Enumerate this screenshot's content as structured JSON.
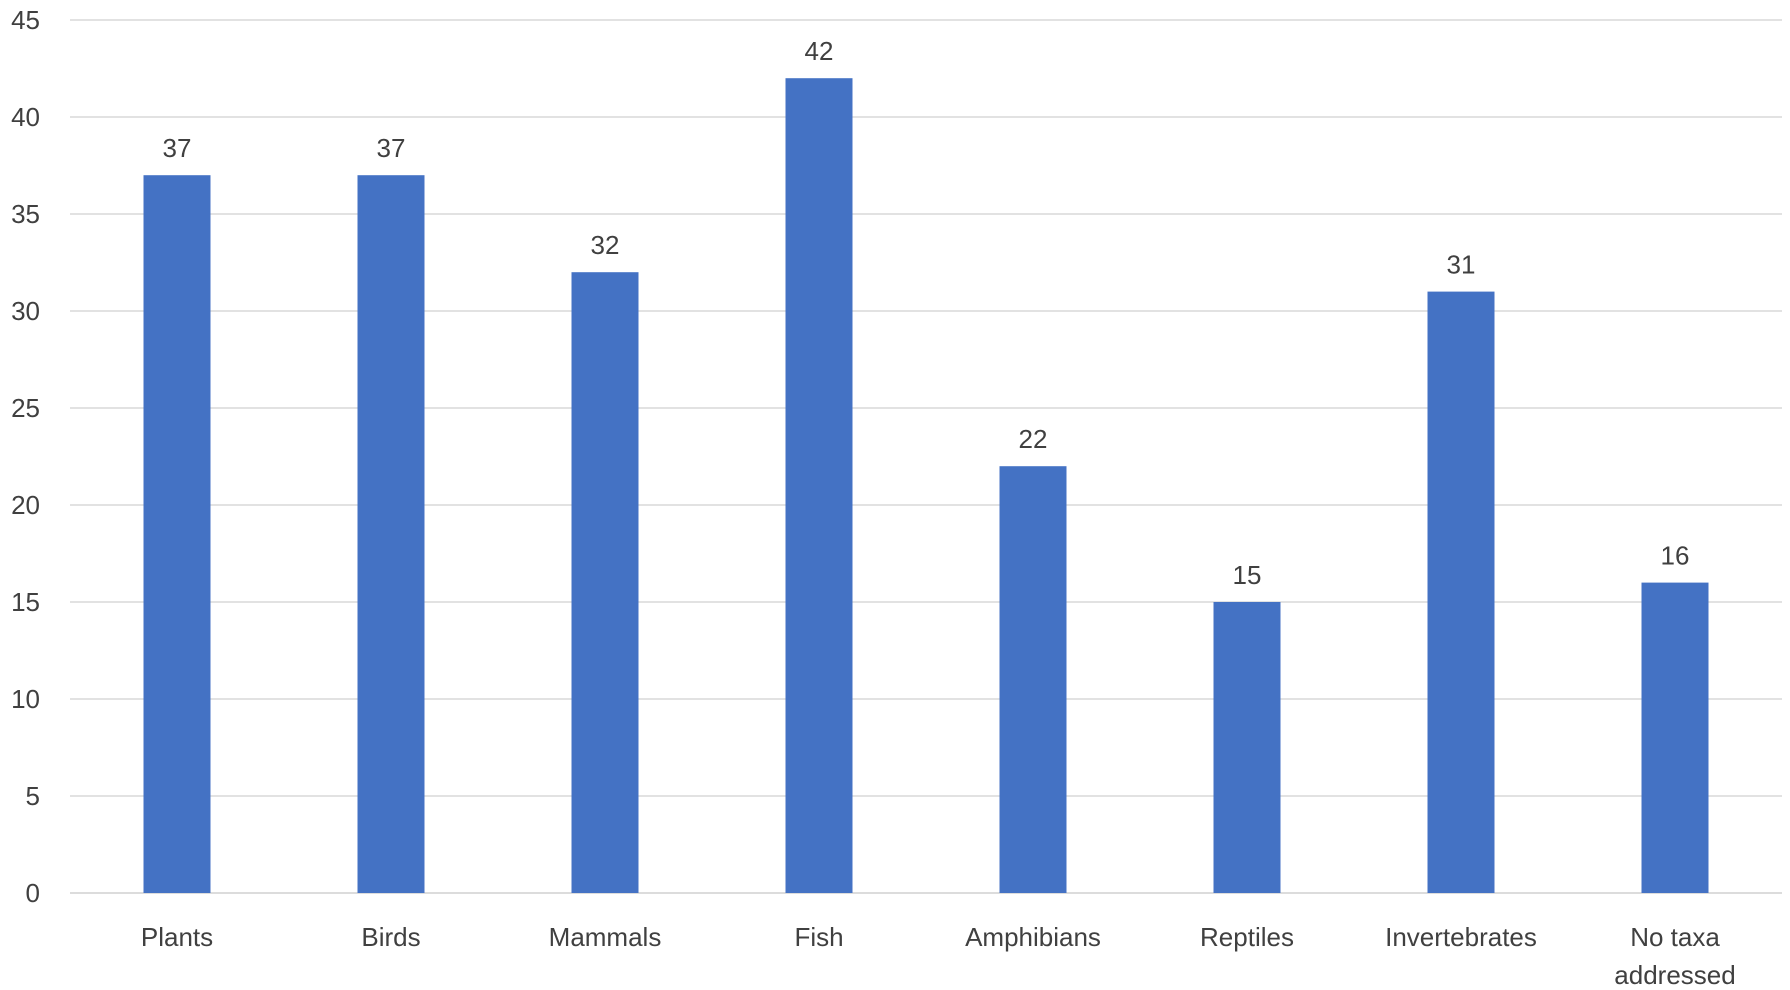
{
  "chart_data": {
    "type": "bar",
    "title": "",
    "xlabel": "",
    "ylabel": "",
    "categories": [
      [
        "Plants"
      ],
      [
        "Birds"
      ],
      [
        "Mammals"
      ],
      [
        "Fish"
      ],
      [
        "Amphibians"
      ],
      [
        "Reptiles"
      ],
      [
        "Invertebrates"
      ],
      [
        "No taxa",
        "addressed"
      ]
    ],
    "values": [
      37,
      37,
      32,
      42,
      22,
      15,
      31,
      16
    ],
    "ylim": [
      0,
      45
    ],
    "yticks": [
      0,
      5,
      10,
      15,
      20,
      25,
      30,
      35,
      40,
      45
    ],
    "grid": true,
    "legend": "none",
    "data_labels": true,
    "colors": {
      "bar": "#4472C4",
      "text": "#404040",
      "grid": "#d9d9d9"
    }
  }
}
